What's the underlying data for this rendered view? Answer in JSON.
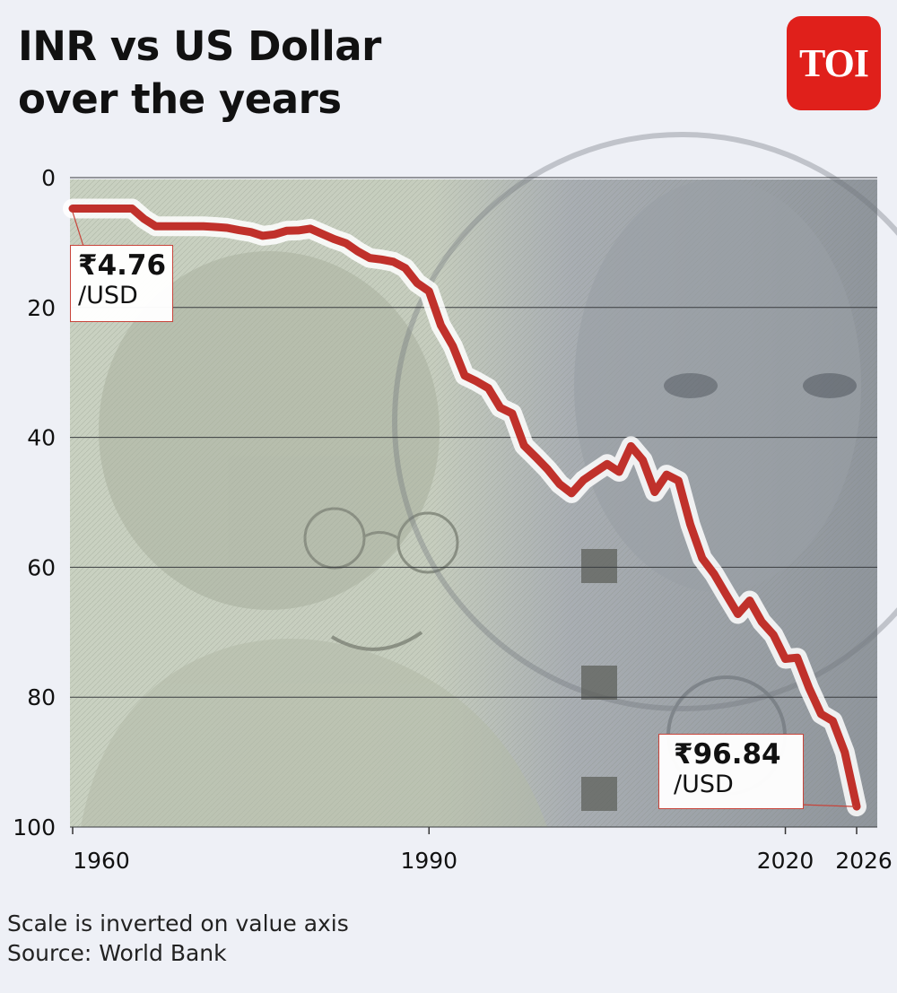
{
  "header": {
    "title_line1": "INR vs US Dollar",
    "title_line2": "over the years",
    "logo_text": "TOI"
  },
  "footer": {
    "note": "Scale is inverted on value axis",
    "source": "Source: World Bank"
  },
  "colors": {
    "line": "#c0312b",
    "background": "#eef0f6",
    "logo": "#e0201b"
  },
  "chart_data": {
    "type": "line",
    "title": "INR vs US Dollar over the years",
    "ylim": [
      0,
      100
    ],
    "y_inverted": true,
    "yticks": [
      0,
      20,
      40,
      60,
      80,
      100
    ],
    "xticks": [
      1960,
      1990,
      2020,
      2026
    ],
    "xlim": [
      1960,
      2026
    ],
    "grid": true,
    "series": [
      {
        "name": "",
        "x": [
          1960,
          1961,
          1962,
          1963,
          1964,
          1965,
          1966,
          1967,
          1968,
          1969,
          1970,
          1971,
          1972,
          1973,
          1974,
          1975,
          1976,
          1977,
          1978,
          1979,
          1980,
          1981,
          1982,
          1983,
          1984,
          1985,
          1986,
          1987,
          1988,
          1989,
          1990,
          1991,
          1992,
          1993,
          1994,
          1995,
          1996,
          1997,
          1998,
          1999,
          2000,
          2001,
          2002,
          2003,
          2004,
          2005,
          2006,
          2007,
          2008,
          2009,
          2010,
          2011,
          2012,
          2013,
          2014,
          2015,
          2016,
          2017,
          2018,
          2019,
          2020,
          2021,
          2022,
          2023,
          2024,
          2025,
          2026
        ],
        "values": [
          4.76,
          4.76,
          4.76,
          4.76,
          4.76,
          4.76,
          6.36,
          7.5,
          7.5,
          7.5,
          7.5,
          7.49,
          7.59,
          7.74,
          8.1,
          8.38,
          8.96,
          8.74,
          8.19,
          8.13,
          7.86,
          8.66,
          9.46,
          10.1,
          11.36,
          12.37,
          12.61,
          12.96,
          13.92,
          16.23,
          17.5,
          22.74,
          25.92,
          30.49,
          31.37,
          32.43,
          35.43,
          36.31,
          41.26,
          43.06,
          44.94,
          47.19,
          48.61,
          46.58,
          45.32,
          44.1,
          45.31,
          41.35,
          43.51,
          48.41,
          45.73,
          46.67,
          53.44,
          58.6,
          61.03,
          64.15,
          67.2,
          65.12,
          68.39,
          70.42,
          74.1,
          73.92,
          78.6,
          82.6,
          83.67,
          88.5,
          96.84
        ]
      }
    ],
    "annotations": [
      {
        "x": 1960,
        "y": 4.76,
        "label": "₹4.76",
        "sublabel": "/USD"
      },
      {
        "x": 2026,
        "y": 96.84,
        "label": "₹96.84",
        "sublabel": "/USD"
      }
    ]
  }
}
